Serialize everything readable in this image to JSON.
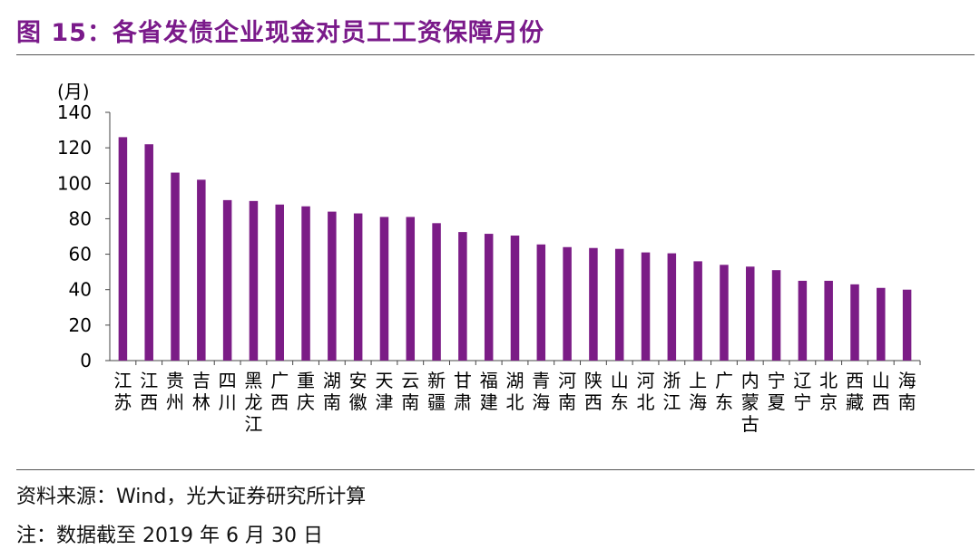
{
  "title": "图 15：各省发债企业现金对员工工资保障月份",
  "footer": {
    "source": "资料来源：Wind，光大证券研究所计算",
    "note": "注：数据截至 2019 年 6 月 30 日"
  },
  "colors": {
    "bar": "#7B1C86",
    "title": "#7a1a8a"
  },
  "chart_data": {
    "type": "bar",
    "ylabel": "(月)",
    "ylim": [
      0,
      140
    ],
    "yticks": [
      0,
      20,
      40,
      60,
      80,
      100,
      120,
      140
    ],
    "grid": false,
    "categories": [
      "江苏",
      "江西",
      "贵州",
      "吉林",
      "四川",
      "黑龙江",
      "广西",
      "重庆",
      "湖南",
      "安徽",
      "天津",
      "云南",
      "新疆",
      "甘肃",
      "福建",
      "湖北",
      "青海",
      "河南",
      "陕西",
      "山东",
      "河北",
      "浙江",
      "上海",
      "广东",
      "内蒙古",
      "宁夏",
      "辽宁",
      "北京",
      "西藏",
      "山西",
      "海南"
    ],
    "values": [
      126,
      122,
      106,
      102,
      90.5,
      90,
      88,
      87,
      84,
      83,
      81,
      81,
      77.5,
      72.5,
      71.5,
      70.5,
      65.5,
      64,
      63.5,
      63,
      61,
      60.5,
      56,
      54,
      53,
      51,
      45,
      45,
      43,
      41,
      40
    ]
  }
}
